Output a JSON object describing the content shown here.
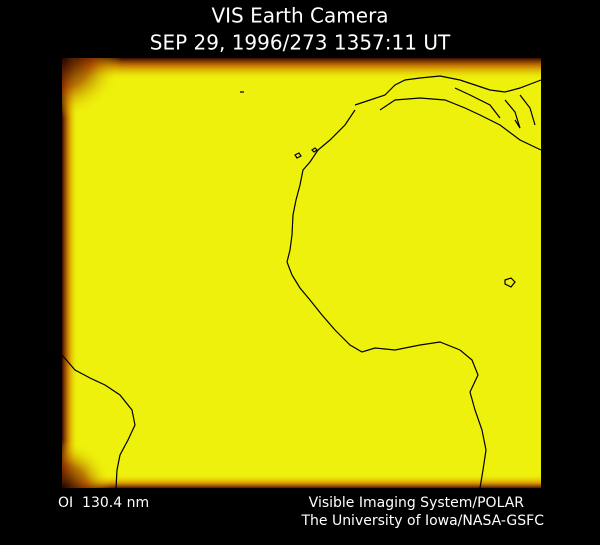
{
  "header": {
    "title": "VIS Earth Camera",
    "timestamp": "SEP 29, 1996/273 1357:11 UT"
  },
  "footer": {
    "filter": "OI  130.4 nm",
    "credit_lines": [
      "Visible Imaging System/POLAR",
      "The University of Iowa/NASA-GSFC"
    ]
  }
}
